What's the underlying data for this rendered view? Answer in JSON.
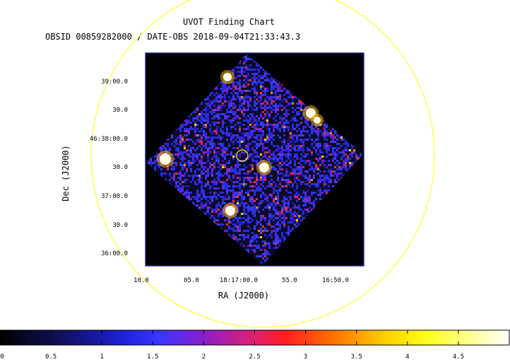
{
  "chart_data": {
    "type": "heatmap",
    "title": "UVOT Finding Chart",
    "subtitle": "OBSID 00859282000 / DATE-OBS 2018-09-04T21:33:43.3",
    "xlabel": "RA (J2000)",
    "ylabel": "Dec (J2000)",
    "x_ticks": [
      "10.0",
      "05.0",
      "18:17:00.0",
      "55.0",
      "16:50.0"
    ],
    "y_ticks": [
      "39:00.0",
      "30.0",
      "46:38:00.0",
      "30.0",
      "37:00.0",
      "30.0",
      "36:00.0"
    ],
    "colorbar": {
      "range": [
        0,
        5
      ],
      "ticks": [
        "0",
        "0.5",
        "1",
        "1.5",
        "2",
        "2.5",
        "3",
        "3.5",
        "4",
        "4.5"
      ]
    },
    "grid": false,
    "legend": "none",
    "colors": {
      "frame": "#1a1a90",
      "circle": "#ffff33",
      "field_background": "#000000"
    }
  }
}
